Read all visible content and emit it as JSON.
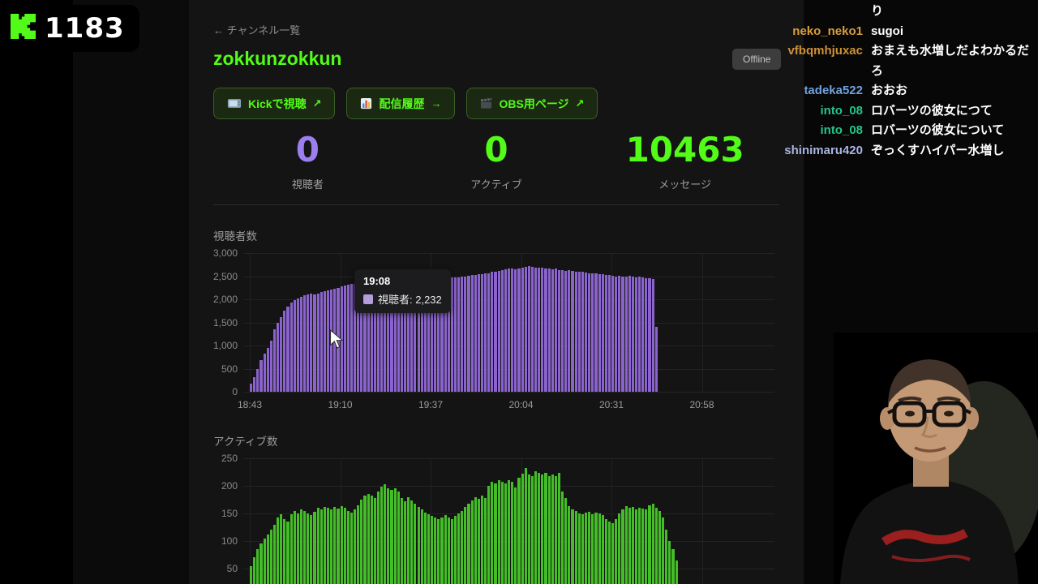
{
  "overlay": {
    "badge_count": "1183",
    "brand_green": "#53fc18"
  },
  "dashboard": {
    "back_link": "← チャンネル一覧",
    "channel_name": "zokkunzokkun",
    "status_badge": "Offline",
    "buttons": [
      {
        "icon": "tv",
        "label": "Kickで視聴",
        "arrow": "↗"
      },
      {
        "icon": "bar-chart",
        "label": "配信履歴",
        "arrow": "→"
      },
      {
        "icon": "clapper",
        "label": "OBS用ページ",
        "arrow": "↗"
      }
    ],
    "stats": [
      {
        "value": "0",
        "label": "視聴者",
        "color": "#9b7ff0"
      },
      {
        "value": "0",
        "label": "アクティブ",
        "color": "#53fc18"
      },
      {
        "value": "10463",
        "label": "メッセージ",
        "color": "#53fc18"
      }
    ]
  },
  "chart_data": [
    {
      "type": "bar",
      "title": "視聴者数",
      "bar_color": "#8a63cc",
      "ylim": [
        0,
        3000
      ],
      "yticks": [
        "3,000",
        "2,500",
        "2,000",
        "1,500",
        "1,000",
        "500",
        "0"
      ],
      "xticks": [
        "18:43",
        "19:10",
        "19:37",
        "20:04",
        "20:31",
        "20:58"
      ],
      "grid": true,
      "legend_position": "tooltip",
      "tooltip": {
        "time": "19:08",
        "swatch_color": "#b39ddb",
        "text": "視聴者: 2,232"
      },
      "values": [
        180,
        320,
        500,
        680,
        820,
        950,
        1100,
        1350,
        1500,
        1620,
        1750,
        1850,
        1930,
        1980,
        2020,
        2050,
        2080,
        2100,
        2120,
        2100,
        2130,
        2150,
        2170,
        2190,
        2210,
        2232,
        2250,
        2280,
        2300,
        2310,
        2330,
        2340,
        2360,
        2370,
        2380,
        2390,
        2380,
        2390,
        2400,
        2410,
        2400,
        2410,
        2420,
        2410,
        2420,
        2430,
        2420,
        2430,
        2440,
        2430,
        2440,
        2450,
        2440,
        2450,
        2460,
        2450,
        2460,
        2470,
        2460,
        2470,
        2480,
        2470,
        2480,
        2490,
        2500,
        2510,
        2520,
        2530,
        2540,
        2550,
        2560,
        2570,
        2590,
        2600,
        2620,
        2640,
        2650,
        2660,
        2670,
        2650,
        2660,
        2680,
        2700,
        2720,
        2700,
        2690,
        2680,
        2690,
        2670,
        2660,
        2650,
        2660,
        2640,
        2630,
        2620,
        2630,
        2610,
        2600,
        2590,
        2600,
        2580,
        2570,
        2560,
        2570,
        2550,
        2540,
        2530,
        2520,
        2510,
        2500,
        2510,
        2490,
        2500,
        2510,
        2490,
        2480,
        2490,
        2470,
        2460,
        2450,
        2440,
        1400
      ]
    },
    {
      "type": "bar",
      "title": "アクティブ数",
      "bar_color": "#44bd28",
      "ylim": [
        0,
        250
      ],
      "yticks": [
        "250",
        "200",
        "150",
        "100",
        "50"
      ],
      "xticks": [],
      "grid": true,
      "values": [
        55,
        70,
        85,
        95,
        105,
        112,
        120,
        130,
        142,
        148,
        140,
        135,
        148,
        155,
        150,
        158,
        155,
        150,
        147,
        153,
        160,
        158,
        162,
        160,
        157,
        162,
        159,
        163,
        160,
        155,
        152,
        158,
        165,
        175,
        182,
        186,
        182,
        178,
        190,
        198,
        203,
        196,
        192,
        196,
        190,
        178,
        172,
        180,
        174,
        168,
        162,
        158,
        152,
        148,
        145,
        142,
        140,
        143,
        147,
        143,
        140,
        145,
        150,
        155,
        162,
        168,
        174,
        180,
        177,
        183,
        178,
        200,
        208,
        205,
        210,
        208,
        204,
        211,
        207,
        197,
        214,
        222,
        233,
        221,
        217,
        227,
        224,
        220,
        223,
        218,
        221,
        217,
        224,
        190,
        178,
        163,
        158,
        154,
        150,
        148,
        151,
        153,
        148,
        152,
        150,
        147,
        140,
        135,
        132,
        140,
        150,
        158,
        163,
        160,
        162,
        157,
        161,
        159,
        157,
        164,
        167,
        160,
        154,
        143,
        120,
        100,
        85,
        65
      ]
    }
  ],
  "chat": {
    "messages": [
      {
        "user": "",
        "color": "#d99e3c",
        "text": "り"
      },
      {
        "user": "neko_neko1",
        "color": "#d99e3c",
        "text": "sugoi"
      },
      {
        "user": "vfbqmhjuxac",
        "color": "#cf9136",
        "text": "おまえも水増しだよわかるだろ"
      },
      {
        "user": "tadeka522",
        "color": "#6fa3e0",
        "text": "おおお"
      },
      {
        "user": "into_08",
        "color": "#27c489",
        "text": "ロバーツの彼女につて"
      },
      {
        "user": "into_08",
        "color": "#27c489",
        "text": "ロバーツの彼女について"
      },
      {
        "user": "shinimaru420",
        "color": "#a9b5e0",
        "text": "ぞっくすハイパー水増し"
      }
    ]
  }
}
